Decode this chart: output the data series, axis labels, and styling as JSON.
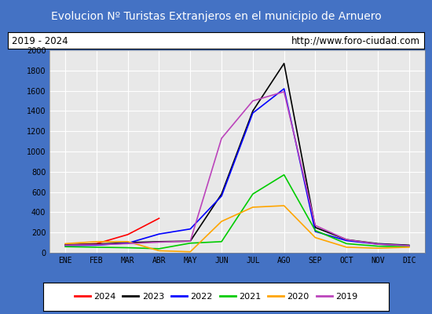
{
  "title": "Evolucion Nº Turistas Extranjeros en el municipio de Arnuero",
  "subtitle_left": "2019 - 2024",
  "subtitle_right": "http://www.foro-ciudad.com",
  "title_bg": "#4472c4",
  "title_color": "white",
  "months": [
    "ENE",
    "FEB",
    "MAR",
    "ABR",
    "MAY",
    "JUN",
    "JUL",
    "AGO",
    "SEP",
    "OCT",
    "NOV",
    "DIC"
  ],
  "ylim": [
    0,
    2000
  ],
  "yticks": [
    0,
    200,
    400,
    600,
    800,
    1000,
    1200,
    1400,
    1600,
    1800,
    2000
  ],
  "series": {
    "2024": {
      "color": "red",
      "data": [
        75,
        90,
        180,
        340,
        null,
        null,
        null,
        null,
        null,
        null,
        null,
        null
      ]
    },
    "2023": {
      "color": "black",
      "data": [
        80,
        85,
        100,
        110,
        115,
        580,
        1400,
        1870,
        250,
        130,
        90,
        75
      ]
    },
    "2022": {
      "color": "blue",
      "data": [
        70,
        75,
        95,
        185,
        235,
        560,
        1380,
        1620,
        210,
        120,
        85,
        70
      ]
    },
    "2021": {
      "color": "#00cc00",
      "data": [
        60,
        55,
        50,
        40,
        95,
        110,
        580,
        770,
        220,
        90,
        65,
        60
      ]
    },
    "2020": {
      "color": "orange",
      "data": [
        90,
        110,
        110,
        20,
        10,
        310,
        450,
        465,
        150,
        55,
        45,
        55
      ]
    },
    "2019": {
      "color": "#bb44bb",
      "data": [
        75,
        80,
        90,
        105,
        115,
        1130,
        1500,
        1590,
        270,
        130,
        85,
        70
      ]
    }
  },
  "legend_order": [
    "2024",
    "2023",
    "2022",
    "2021",
    "2020",
    "2019"
  ],
  "plot_bg": "#e8e8e8",
  "grid_color": "white",
  "border_color": "#4472c4",
  "subtitle_bg": "white",
  "legend_bg": "white"
}
